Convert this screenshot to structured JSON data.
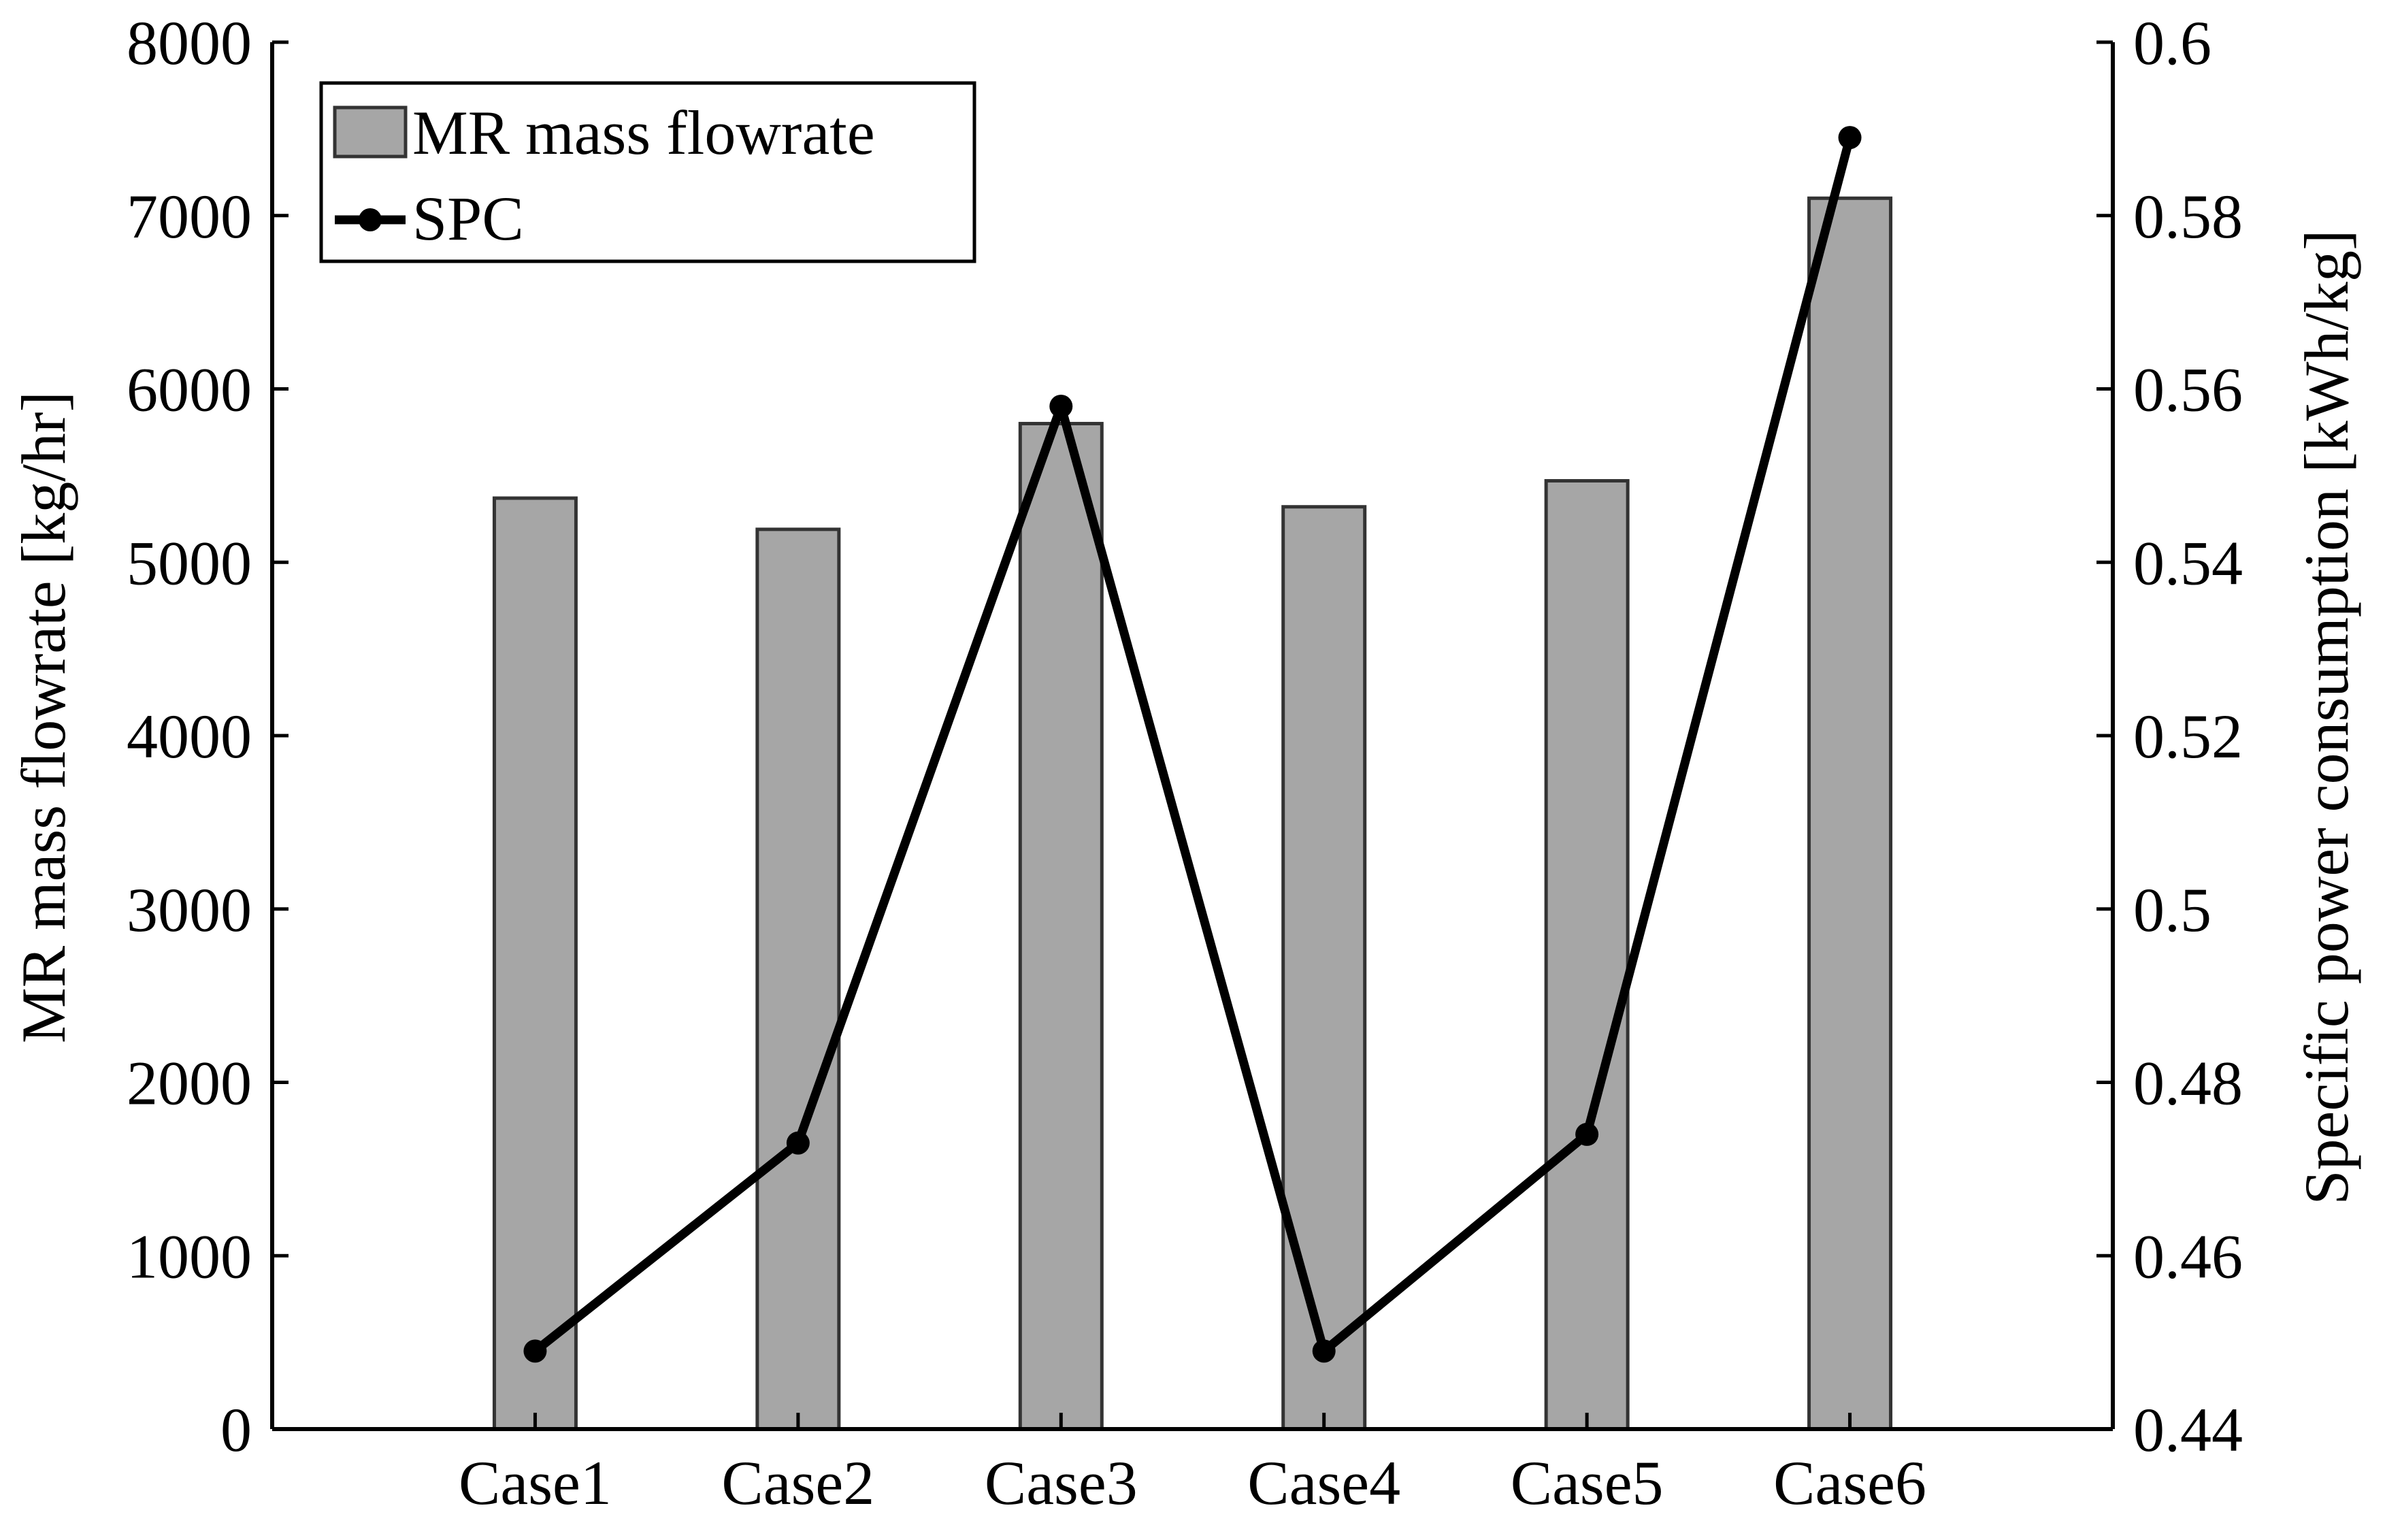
{
  "chart_data": {
    "type": "bar",
    "title": "",
    "categories": [
      "Case1",
      "Case2",
      "Case3",
      "Case4",
      "Case5",
      "Case6"
    ],
    "xlabel": "",
    "series": [
      {
        "name": "MR mass flowrate",
        "kind": "bar",
        "axis": "left",
        "values": [
          5370,
          5190,
          5800,
          5320,
          5470,
          7100
        ]
      },
      {
        "name": "SPC",
        "kind": "line",
        "axis": "right",
        "marker": "circle",
        "values": [
          0.449,
          0.473,
          0.558,
          0.449,
          0.474,
          0.589
        ]
      }
    ],
    "y_left": {
      "label": "MR mass flowrate [kg/hr]",
      "lim": [
        0,
        8000
      ],
      "ticks": [
        0,
        1000,
        2000,
        3000,
        4000,
        5000,
        6000,
        7000,
        8000
      ],
      "tick_labels": [
        "0",
        "1000",
        "2000",
        "3000",
        "4000",
        "5000",
        "6000",
        "7000",
        "8000"
      ]
    },
    "y_right": {
      "label": "Specific power consumption [kWh/kg]",
      "lim": [
        0.44,
        0.6
      ],
      "ticks": [
        0.44,
        0.46,
        0.48,
        0.5,
        0.52,
        0.54,
        0.56,
        0.58,
        0.6
      ],
      "tick_labels": [
        "0.44",
        "0.46",
        "0.48",
        "0.5",
        "0.52",
        "0.54",
        "0.56",
        "0.58",
        "0.6"
      ]
    },
    "legend": {
      "position": "top-left",
      "entries": [
        "MR mass flowrate",
        "SPC"
      ]
    },
    "grid": false,
    "colors": {
      "bar_fill": "#a6a6a6",
      "bar_edge": "#333333",
      "line": "#000000"
    }
  }
}
